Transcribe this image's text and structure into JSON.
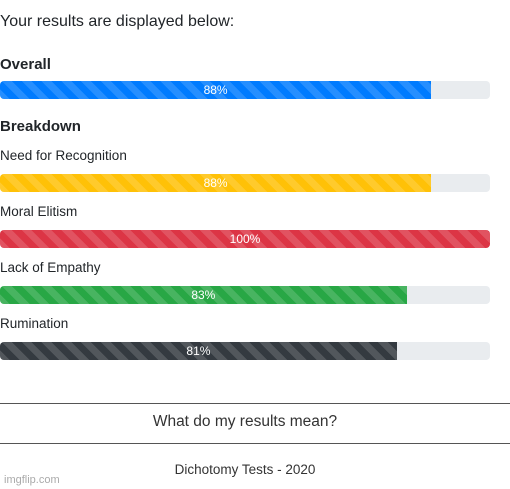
{
  "header": {
    "title": "Your results are displayed below:"
  },
  "overall": {
    "heading": "Overall",
    "bar": {
      "value": 88,
      "value_label": "88%",
      "color": "#007bff"
    }
  },
  "breakdown": {
    "heading": "Breakdown",
    "items": [
      {
        "label": "Need for Recognition",
        "value": 88,
        "value_label": "88%",
        "color": "#ffc107"
      },
      {
        "label": "Moral Elitism",
        "value": 100,
        "value_label": "100%",
        "color": "#dc3545"
      },
      {
        "label": "Lack of Empathy",
        "value": 83,
        "value_label": "83%",
        "color": "#28a745"
      },
      {
        "label": "Rumination",
        "value": 81,
        "value_label": "81%",
        "color": "#343a40"
      }
    ]
  },
  "scale_max": 100,
  "link": "What do my results mean?",
  "footer": "Dichotomy Tests - 2020",
  "watermark": "imgflip.com"
}
